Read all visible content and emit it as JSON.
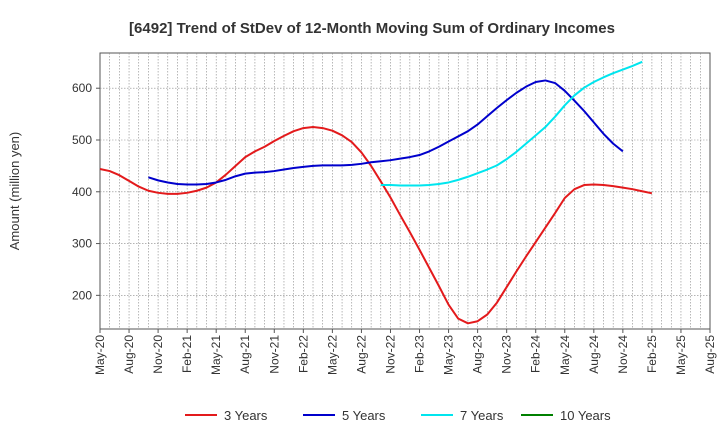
{
  "chart_data": {
    "type": "line",
    "title": "[6492]  Trend of StDev of 12-Month Moving Sum of Ordinary Incomes",
    "xlabel": "",
    "ylabel": "Amount (million yen)",
    "ylim": [
      135,
      668
    ],
    "y_ticks": [
      200,
      300,
      400,
      500,
      600
    ],
    "x_range": [
      0,
      63
    ],
    "x_ticks": [
      {
        "t": 0,
        "label": "May-20"
      },
      {
        "t": 3,
        "label": "Aug-20"
      },
      {
        "t": 6,
        "label": "Nov-20"
      },
      {
        "t": 9,
        "label": "Feb-21"
      },
      {
        "t": 12,
        "label": "May-21"
      },
      {
        "t": 15,
        "label": "Aug-21"
      },
      {
        "t": 18,
        "label": "Nov-21"
      },
      {
        "t": 21,
        "label": "Feb-22"
      },
      {
        "t": 24,
        "label": "May-22"
      },
      {
        "t": 27,
        "label": "Aug-22"
      },
      {
        "t": 30,
        "label": "Nov-22"
      },
      {
        "t": 33,
        "label": "Feb-23"
      },
      {
        "t": 36,
        "label": "May-23"
      },
      {
        "t": 39,
        "label": "Aug-23"
      },
      {
        "t": 42,
        "label": "Nov-23"
      },
      {
        "t": 45,
        "label": "Feb-24"
      },
      {
        "t": 48,
        "label": "May-24"
      },
      {
        "t": 51,
        "label": "Aug-24"
      },
      {
        "t": 54,
        "label": "Nov-24"
      },
      {
        "t": 57,
        "label": "Feb-25"
      },
      {
        "t": 60,
        "label": "May-25"
      },
      {
        "t": 63,
        "label": "Aug-25"
      }
    ],
    "grid": true,
    "legend_position": "bottom",
    "series": [
      {
        "name": "3 Years",
        "color": "#e31a1c",
        "start": 0,
        "values": [
          444,
          440,
          432,
          421,
          410,
          402,
          398,
          396,
          396,
          398,
          402,
          408,
          418,
          433,
          450,
          467,
          478,
          487,
          498,
          508,
          517,
          523,
          525,
          523,
          518,
          509,
          496,
          476,
          450,
          420,
          389,
          355,
          322,
          288,
          253,
          218,
          182,
          155,
          146,
          150,
          163,
          186,
          216,
          246,
          275,
          303,
          331,
          359,
          388,
          405,
          413,
          414,
          413,
          411,
          408,
          405,
          401,
          397
        ]
      },
      {
        "name": "5 Years",
        "color": "#0000cc",
        "start": 5,
        "values": [
          428,
          422,
          418,
          415,
          414,
          414,
          415,
          418,
          423,
          430,
          435,
          437,
          438,
          440,
          443,
          446,
          448,
          450,
          451,
          451,
          451,
          452,
          454,
          457,
          459,
          461,
          464,
          467,
          471,
          478,
          487,
          497,
          507,
          517,
          530,
          546,
          562,
          577,
          591,
          603,
          612,
          615,
          610,
          595,
          576,
          556,
          534,
          512,
          493,
          478
        ]
      },
      {
        "name": "7 Years",
        "color": "#00e5ee",
        "start": 29,
        "values": [
          413,
          413,
          412,
          412,
          412,
          413,
          415,
          418,
          423,
          429,
          436,
          443,
          451,
          463,
          477,
          493,
          509,
          525,
          545,
          567,
          586,
          601,
          612,
          621,
          629,
          636,
          643,
          651
        ]
      },
      {
        "name": "10 Years",
        "color": "#008000",
        "start": 0,
        "values": []
      }
    ]
  }
}
